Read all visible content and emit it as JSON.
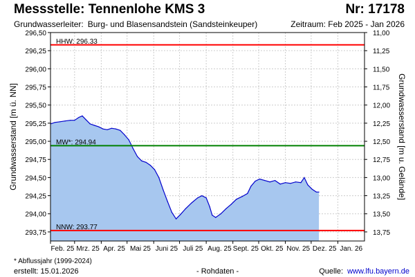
{
  "header": {
    "title": "Messstelle: Tennenlohe KMS 3",
    "nr": "Nr: 17178",
    "aquifer_label": "Grundwasserleiter:",
    "aquifer": "Burg- und Blasensandstein (Sandsteinkeuper)",
    "period": "Zeitraum: Feb 2025 - Jan 2026"
  },
  "chart_data": {
    "type": "area",
    "ylabel": "Grundwasserstand [m ü. NN]",
    "y2label": "Grundwasserstand [m u. Gelände]",
    "ylim": [
      293.625,
      296.5
    ],
    "y2lim": [
      13.875,
      11.0
    ],
    "y_ticks": [
      "296,50",
      "296,25",
      "296,00",
      "295,75",
      "295,50",
      "295,25",
      "295,00",
      "294,75",
      "294,50",
      "294,25",
      "294,00",
      "293,75"
    ],
    "y_tick_values": [
      296.5,
      296.25,
      296.0,
      295.75,
      295.5,
      295.25,
      295.0,
      294.75,
      294.5,
      294.25,
      294.0,
      293.75
    ],
    "y2_ticks": [
      "11,00",
      "11,25",
      "11,50",
      "11,75",
      "12,00",
      "12,25",
      "12,50",
      "12,75",
      "13,00",
      "13,25",
      "13,50",
      "13,75"
    ],
    "y2_tick_values": [
      11.0,
      11.25,
      11.5,
      11.75,
      12.0,
      12.25,
      12.5,
      12.75,
      13.0,
      13.25,
      13.5,
      13.75
    ],
    "x_categories": [
      "Feb. 25",
      "Mrz. 25",
      "Apr. 25",
      "Mai 25",
      "Juni 25",
      "Juli 25",
      "Aug. 25",
      "Sept. 25",
      "Okt. 25",
      "Nov. 25",
      "Dez. 25",
      "Jan. 26"
    ],
    "x_domain": [
      "2025-02-01",
      "2026-02-01"
    ],
    "grid": true,
    "reference_lines": [
      {
        "label": "HHW: 296.33",
        "value": 296.33,
        "color": "#ff0000"
      },
      {
        "label": "MW*: 294.94",
        "value": 294.94,
        "color": "#008000"
      },
      {
        "label": "NNW: 293.77",
        "value": 293.77,
        "color": "#ff0000"
      }
    ],
    "series": [
      {
        "line_color": "#0000cc",
        "fill_color": "#a7c7ef",
        "points": [
          [
            "2025-02-01",
            295.24
          ],
          [
            "2025-02-06",
            295.26
          ],
          [
            "2025-02-12",
            295.27
          ],
          [
            "2025-02-18",
            295.28
          ],
          [
            "2025-02-24",
            295.29
          ],
          [
            "2025-03-01",
            295.29
          ],
          [
            "2025-03-06",
            295.33
          ],
          [
            "2025-03-10",
            295.35
          ],
          [
            "2025-03-14",
            295.3
          ],
          [
            "2025-03-19",
            295.24
          ],
          [
            "2025-03-24",
            295.22
          ],
          [
            "2025-03-29",
            295.2
          ],
          [
            "2025-04-03",
            295.17
          ],
          [
            "2025-04-08",
            295.16
          ],
          [
            "2025-04-13",
            295.18
          ],
          [
            "2025-04-18",
            295.17
          ],
          [
            "2025-04-23",
            295.15
          ],
          [
            "2025-04-28",
            295.09
          ],
          [
            "2025-05-03",
            295.02
          ],
          [
            "2025-05-08",
            294.9
          ],
          [
            "2025-05-13",
            294.79
          ],
          [
            "2025-05-18",
            294.73
          ],
          [
            "2025-05-23",
            294.71
          ],
          [
            "2025-05-28",
            294.67
          ],
          [
            "2025-06-02",
            294.61
          ],
          [
            "2025-06-07",
            294.5
          ],
          [
            "2025-06-12",
            294.33
          ],
          [
            "2025-06-17",
            294.17
          ],
          [
            "2025-06-22",
            294.02
          ],
          [
            "2025-06-27",
            293.93
          ],
          [
            "2025-07-02",
            293.99
          ],
          [
            "2025-07-08",
            294.07
          ],
          [
            "2025-07-15",
            294.15
          ],
          [
            "2025-07-22",
            294.22
          ],
          [
            "2025-07-27",
            294.25
          ],
          [
            "2025-08-01",
            294.22
          ],
          [
            "2025-08-05",
            294.1
          ],
          [
            "2025-08-08",
            293.98
          ],
          [
            "2025-08-12",
            293.95
          ],
          [
            "2025-08-18",
            294.0
          ],
          [
            "2025-08-24",
            294.07
          ],
          [
            "2025-08-30",
            294.13
          ],
          [
            "2025-09-05",
            294.2
          ],
          [
            "2025-09-12",
            294.24
          ],
          [
            "2025-09-18",
            294.28
          ],
          [
            "2025-09-22",
            294.38
          ],
          [
            "2025-09-27",
            294.45
          ],
          [
            "2025-10-02",
            294.48
          ],
          [
            "2025-10-08",
            294.46
          ],
          [
            "2025-10-14",
            294.44
          ],
          [
            "2025-10-20",
            294.46
          ],
          [
            "2025-10-26",
            294.41
          ],
          [
            "2025-11-01",
            294.43
          ],
          [
            "2025-11-07",
            294.42
          ],
          [
            "2025-11-13",
            294.44
          ],
          [
            "2025-11-19",
            294.43
          ],
          [
            "2025-11-23",
            294.5
          ],
          [
            "2025-11-27",
            294.4
          ],
          [
            "2025-12-02",
            294.34
          ],
          [
            "2025-12-07",
            294.3
          ],
          [
            "2025-12-10",
            294.3
          ]
        ]
      }
    ]
  },
  "footer": {
    "note": "* Abflussjahr (1999-2024)",
    "created": "erstellt:  15.01.2026",
    "raw": "- Rohdaten -",
    "source_label": "Quelle:",
    "source_link": "www.lfu.bayern.de"
  }
}
